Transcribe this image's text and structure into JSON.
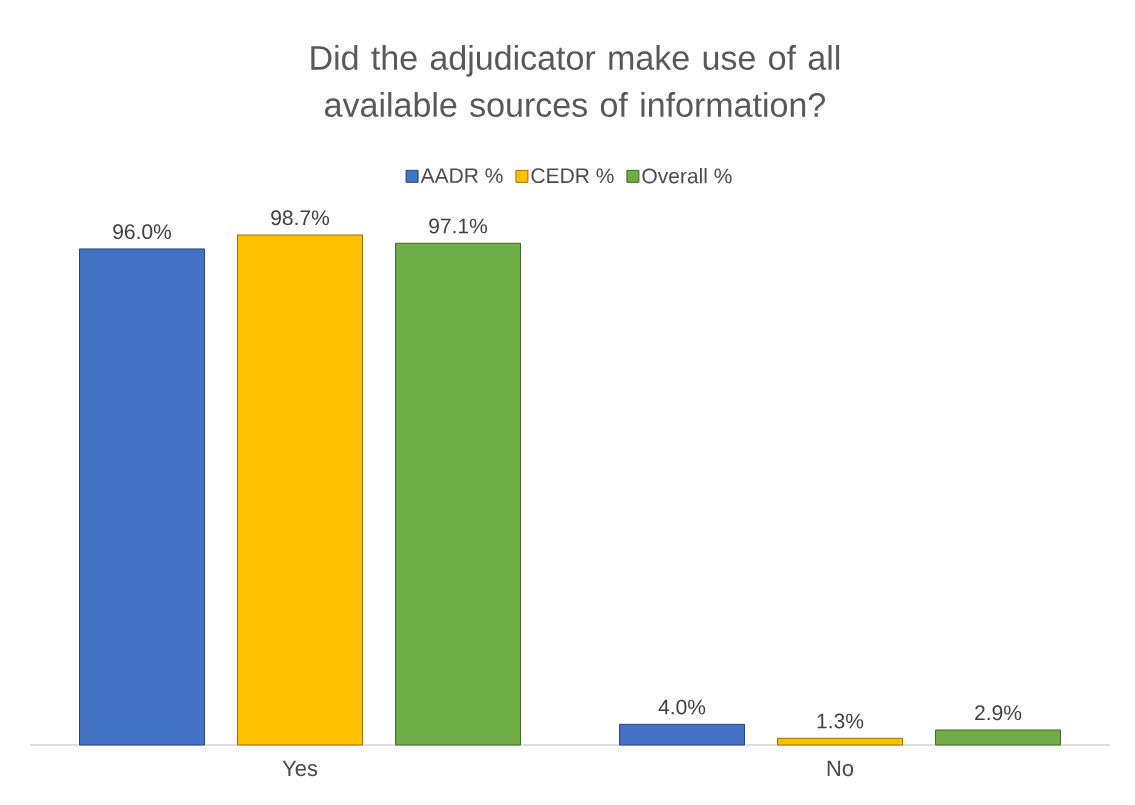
{
  "chart_data": {
    "type": "bar",
    "title": "Did the adjudicator make use of all available sources of information?",
    "categories": [
      "Yes",
      "No"
    ],
    "series": [
      {
        "name": "AADR %",
        "color": "#4472c4",
        "values": [
          96.0,
          4.0
        ],
        "value_labels": [
          "96.0%",
          "4.0%"
        ]
      },
      {
        "name": "CEDR %",
        "color": "#ffc000",
        "values": [
          98.7,
          1.3
        ],
        "value_labels": [
          "98.7%",
          "1.3%"
        ]
      },
      {
        "name": "Overall %",
        "color": "#70ad47",
        "values": [
          97.1,
          2.9
        ],
        "value_labels": [
          "97.1%",
          "2.9%"
        ]
      }
    ],
    "legend": "top"
  }
}
